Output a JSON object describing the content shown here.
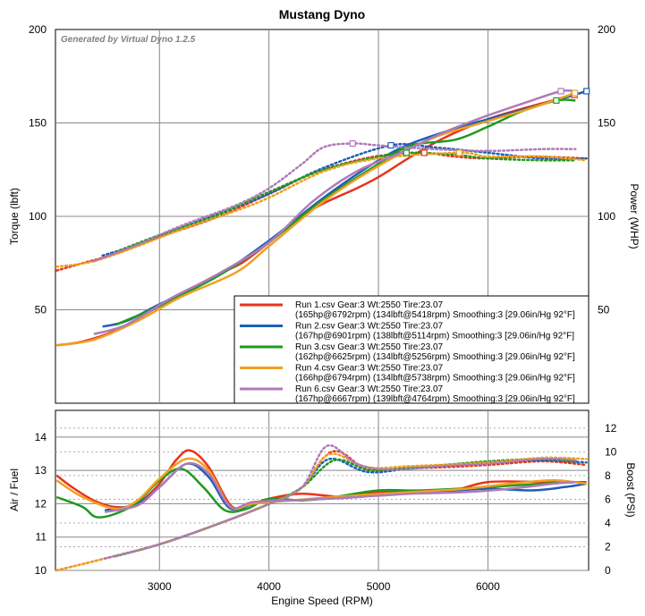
{
  "chart_data": {
    "title": "Mustang Dyno",
    "generator": "Generated by Virtual Dyno 1.2.5",
    "xlabel": "Engine Speed (RPM)",
    "xlim": [
      2050,
      6920
    ],
    "xticks": [
      3000,
      4000,
      5000,
      6000
    ],
    "top": {
      "type": "line",
      "ylabel_left": "Torque (lbft)",
      "ylabel_right": "Power (WHP)",
      "ylim": [
        0,
        200
      ],
      "yticks": [
        50,
        100,
        150,
        200
      ],
      "grid": true,
      "legend": "bottom-right"
    },
    "bottom": {
      "type": "line",
      "ylabel_left": "Air / Fuel",
      "ylabel_right": "Boost (PSI)",
      "ylim_left": [
        10,
        14.8
      ],
      "yticks_left": [
        10,
        11,
        12,
        13,
        14
      ],
      "ylim_right": [
        0,
        13.5
      ],
      "yticks_right": [
        0,
        2,
        4,
        6,
        8,
        10,
        12
      ],
      "grid": true
    },
    "series": [
      {
        "name_line1": "Run 1.csv Gear:3 Wt:2550 Tire:23.07",
        "name_line2": "(165hp@6792rpm) (134lbft@5418rpm) Smoothing:3 [29.06in/Hg 92°F]",
        "color": "#e8341c",
        "power": [
          [
            2060,
            31
          ],
          [
            2300,
            33
          ],
          [
            2600,
            39
          ],
          [
            3000,
            52
          ],
          [
            3500,
            68
          ],
          [
            3750,
            75
          ],
          [
            4000,
            86
          ],
          [
            4300,
            100
          ],
          [
            4500,
            107
          ],
          [
            4800,
            115
          ],
          [
            5000,
            121
          ],
          [
            5300,
            132
          ],
          [
            5600,
            142
          ],
          [
            6000,
            152
          ],
          [
            6400,
            159
          ],
          [
            6792,
            165
          ]
        ],
        "torque": [
          [
            2060,
            71
          ],
          [
            2300,
            75
          ],
          [
            2600,
            80
          ],
          [
            3000,
            89
          ],
          [
            3500,
            99
          ],
          [
            4000,
            112
          ],
          [
            4400,
            123
          ],
          [
            4800,
            130
          ],
          [
            5100,
            133
          ],
          [
            5418,
            134
          ],
          [
            5700,
            132
          ],
          [
            6000,
            131
          ],
          [
            6400,
            132
          ],
          [
            6900,
            131
          ]
        ],
        "afr": [
          [
            2060,
            12.85
          ],
          [
            2200,
            12.5
          ],
          [
            2400,
            12.1
          ],
          [
            2600,
            11.9
          ],
          [
            2800,
            12.0
          ],
          [
            3000,
            12.6
          ],
          [
            3150,
            13.3
          ],
          [
            3280,
            13.6
          ],
          [
            3450,
            13.1
          ],
          [
            3650,
            11.95
          ],
          [
            3800,
            11.95
          ],
          [
            4000,
            12.15
          ],
          [
            4300,
            12.3
          ],
          [
            4700,
            12.2
          ],
          [
            5000,
            12.35
          ],
          [
            5600,
            12.35
          ],
          [
            6000,
            12.65
          ],
          [
            6500,
            12.65
          ],
          [
            6900,
            12.65
          ]
        ],
        "boost": [
          [
            2060,
            0
          ],
          [
            2500,
            1
          ],
          [
            3000,
            2.2
          ],
          [
            3500,
            3.8
          ],
          [
            4000,
            5.6
          ],
          [
            4300,
            7
          ],
          [
            4500,
            9.5
          ],
          [
            4650,
            10
          ],
          [
            4900,
            8.5
          ],
          [
            5200,
            8.6
          ],
          [
            5600,
            8.7
          ],
          [
            6000,
            8.9
          ],
          [
            6500,
            9.2
          ],
          [
            6900,
            8.9
          ]
        ]
      },
      {
        "name_line1": "Run 2.csv Gear:3 Wt:2550 Tire:23.07",
        "name_line2": "(167hp@6901rpm) (138lbft@5114rpm) Smoothing:3 [29.06in/Hg 92°F]",
        "color": "#1e5fb5",
        "power": [
          [
            2480,
            41
          ],
          [
            2700,
            44
          ],
          [
            3000,
            53
          ],
          [
            3500,
            67
          ],
          [
            4000,
            87
          ],
          [
            4500,
            110
          ],
          [
            5000,
            130
          ],
          [
            5300,
            139
          ],
          [
            5700,
            147
          ],
          [
            6000,
            152
          ],
          [
            6500,
            160
          ],
          [
            6901,
            167
          ]
        ],
        "torque": [
          [
            2480,
            79
          ],
          [
            2800,
            85
          ],
          [
            3200,
            94
          ],
          [
            3700,
            105
          ],
          [
            4000,
            112
          ],
          [
            4500,
            126
          ],
          [
            5114,
            138
          ],
          [
            5500,
            137
          ],
          [
            6000,
            134
          ],
          [
            6500,
            131
          ],
          [
            6900,
            131
          ]
        ],
        "afr": [
          [
            2500,
            11.8
          ],
          [
            2800,
            12.0
          ],
          [
            3000,
            12.5
          ],
          [
            3250,
            13.2
          ],
          [
            3450,
            12.8
          ],
          [
            3650,
            11.85
          ],
          [
            3900,
            12.05
          ],
          [
            4200,
            12.1
          ],
          [
            4800,
            12.2
          ],
          [
            5200,
            12.35
          ],
          [
            5700,
            12.4
          ],
          [
            6000,
            12.45
          ],
          [
            6400,
            12.4
          ],
          [
            6700,
            12.5
          ],
          [
            6900,
            12.6
          ]
        ],
        "boost": [
          [
            2500,
            1
          ],
          [
            3000,
            2.2
          ],
          [
            3500,
            3.8
          ],
          [
            4000,
            5.6
          ],
          [
            4300,
            7
          ],
          [
            4550,
            9.4
          ],
          [
            4900,
            8.3
          ],
          [
            5300,
            8.6
          ],
          [
            6000,
            9.1
          ],
          [
            6500,
            9.3
          ],
          [
            6900,
            9.1
          ]
        ]
      },
      {
        "name_line1": "Run 3.csv Gear:3 Wt:2550 Tire:23.07",
        "name_line2": "(162hp@6625rpm) (134lbft@5256rpm) Smoothing:3 [29.06in/Hg 92°F]",
        "color": "#1f9a1f",
        "power": [
          [
            2600,
            42
          ],
          [
            3000,
            52
          ],
          [
            3500,
            67
          ],
          [
            3750,
            76
          ],
          [
            4000,
            86
          ],
          [
            4500,
            109
          ],
          [
            5000,
            128
          ],
          [
            5300,
            138
          ],
          [
            5700,
            141
          ],
          [
            6000,
            148
          ],
          [
            6300,
            156
          ],
          [
            6625,
            162
          ],
          [
            6800,
            162
          ]
        ],
        "torque": [
          [
            2600,
            81
          ],
          [
            3000,
            90
          ],
          [
            3500,
            100
          ],
          [
            4000,
            113
          ],
          [
            4500,
            125
          ],
          [
            5000,
            132
          ],
          [
            5256,
            134
          ],
          [
            5700,
            133
          ],
          [
            6000,
            131
          ],
          [
            6500,
            130
          ],
          [
            6800,
            130
          ]
        ],
        "afr": [
          [
            2060,
            12.2
          ],
          [
            2300,
            11.9
          ],
          [
            2420,
            11.6
          ],
          [
            2600,
            11.7
          ],
          [
            2800,
            12.05
          ],
          [
            3000,
            12.7
          ],
          [
            3200,
            13.05
          ],
          [
            3400,
            12.5
          ],
          [
            3600,
            11.8
          ],
          [
            3800,
            11.85
          ],
          [
            4000,
            12.15
          ],
          [
            4300,
            12.1
          ],
          [
            4600,
            12.2
          ],
          [
            5000,
            12.4
          ],
          [
            5400,
            12.4
          ],
          [
            6000,
            12.5
          ],
          [
            6500,
            12.6
          ],
          [
            6800,
            12.65
          ]
        ],
        "boost": [
          [
            2600,
            1.2
          ],
          [
            3000,
            2.2
          ],
          [
            3500,
            3.8
          ],
          [
            4000,
            5.6
          ],
          [
            4300,
            7
          ],
          [
            4600,
            9.3
          ],
          [
            4900,
            8.5
          ],
          [
            5200,
            8.6
          ],
          [
            6000,
            9.2
          ],
          [
            6500,
            9.4
          ],
          [
            6800,
            9.2
          ]
        ]
      },
      {
        "name_line1": "Run 4.csv Gear:3 Wt:2550 Tire:23.07",
        "name_line2": "(166hp@6794rpm) (134lbft@5738rpm) Smoothing:3 [29.06in/Hg 92°F]",
        "color": "#f0a020",
        "power": [
          [
            2060,
            31
          ],
          [
            2400,
            34
          ],
          [
            2800,
            44
          ],
          [
            3200,
            57
          ],
          [
            3700,
            70
          ],
          [
            4000,
            84
          ],
          [
            4500,
            108
          ],
          [
            5000,
            127
          ],
          [
            5500,
            142
          ],
          [
            6000,
            151
          ],
          [
            6400,
            158
          ],
          [
            6794,
            166
          ]
        ],
        "torque": [
          [
            2060,
            73
          ],
          [
            2400,
            76
          ],
          [
            2800,
            84
          ],
          [
            3200,
            93
          ],
          [
            3700,
            103
          ],
          [
            4000,
            110
          ],
          [
            4500,
            124
          ],
          [
            5000,
            131
          ],
          [
            5738,
            134
          ],
          [
            6000,
            132
          ],
          [
            6500,
            132
          ],
          [
            6900,
            130
          ]
        ],
        "afr": [
          [
            2060,
            12.7
          ],
          [
            2300,
            12.2
          ],
          [
            2600,
            11.85
          ],
          [
            2800,
            12.1
          ],
          [
            3000,
            12.75
          ],
          [
            3250,
            13.35
          ],
          [
            3450,
            13.0
          ],
          [
            3650,
            11.9
          ],
          [
            3850,
            12.0
          ],
          [
            4200,
            12.1
          ],
          [
            4800,
            12.25
          ],
          [
            5300,
            12.35
          ],
          [
            5800,
            12.45
          ],
          [
            6200,
            12.6
          ],
          [
            6600,
            12.7
          ],
          [
            6900,
            12.6
          ]
        ],
        "boost": [
          [
            2060,
            0
          ],
          [
            2500,
            1
          ],
          [
            3000,
            2.2
          ],
          [
            3500,
            3.8
          ],
          [
            4000,
            5.6
          ],
          [
            4300,
            7
          ],
          [
            4550,
            9.8
          ],
          [
            4900,
            8.7
          ],
          [
            5300,
            8.8
          ],
          [
            6000,
            9.1
          ],
          [
            6500,
            9.5
          ],
          [
            6900,
            9.4
          ]
        ]
      },
      {
        "name_line1": "Run 6.csv Gear:3 Wt:2550 Tire:23.07",
        "name_line2": "(167hp@6667rpm) (139lbft@4764rpm) Smoothing:3 [29.06in/Hg 92°F]",
        "color": "#b07ab8",
        "power": [
          [
            2400,
            37
          ],
          [
            2700,
            42
          ],
          [
            3100,
            56
          ],
          [
            3500,
            68
          ],
          [
            4000,
            86
          ],
          [
            4400,
            108
          ],
          [
            4800,
            124
          ],
          [
            5200,
            134
          ],
          [
            5600,
            145
          ],
          [
            6000,
            154
          ],
          [
            6400,
            162
          ],
          [
            6667,
            167
          ],
          [
            6800,
            167
          ]
        ],
        "torque": [
          [
            2400,
            76
          ],
          [
            2800,
            85
          ],
          [
            3200,
            95
          ],
          [
            3700,
            106
          ],
          [
            4000,
            115
          ],
          [
            4300,
            128
          ],
          [
            4500,
            137
          ],
          [
            4764,
            139
          ],
          [
            5000,
            138
          ],
          [
            5500,
            136
          ],
          [
            6000,
            135
          ],
          [
            6500,
            136
          ],
          [
            6800,
            136
          ]
        ],
        "afr": [
          [
            2500,
            11.75
          ],
          [
            2800,
            11.95
          ],
          [
            3000,
            12.5
          ],
          [
            3250,
            13.2
          ],
          [
            3450,
            12.9
          ],
          [
            3650,
            11.9
          ],
          [
            3850,
            12.05
          ],
          [
            4200,
            12.1
          ],
          [
            4800,
            12.2
          ],
          [
            5300,
            12.3
          ],
          [
            5800,
            12.35
          ],
          [
            6200,
            12.45
          ],
          [
            6600,
            12.6
          ],
          [
            6800,
            12.65
          ]
        ],
        "boost": [
          [
            2500,
            1
          ],
          [
            3000,
            2.2
          ],
          [
            3500,
            3.8
          ],
          [
            4000,
            5.6
          ],
          [
            4300,
            7
          ],
          [
            4530,
            10.5
          ],
          [
            4800,
            9
          ],
          [
            5100,
            8.5
          ],
          [
            5600,
            8.8
          ],
          [
            6000,
            9
          ],
          [
            6500,
            9.4
          ],
          [
            6800,
            9.3
          ]
        ]
      }
    ]
  }
}
